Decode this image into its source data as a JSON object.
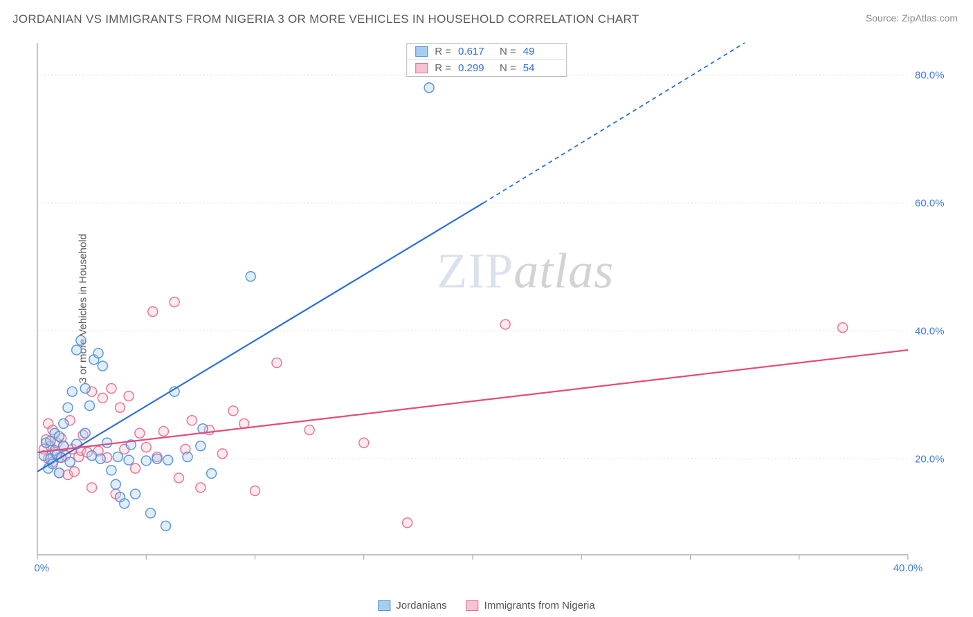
{
  "title": "JORDANIAN VS IMMIGRANTS FROM NIGERIA 3 OR MORE VEHICLES IN HOUSEHOLD CORRELATION CHART",
  "source": "Source: ZipAtlas.com",
  "y_axis_label": "3 or more Vehicles in Household",
  "watermark_a": "ZIP",
  "watermark_b": "atlas",
  "chart": {
    "type": "scatter",
    "background_color": "#ffffff",
    "grid_color": "#d8d8d8",
    "axis_color": "#9e9e9e",
    "tick_label_color": "#3d7ad9",
    "xlim": [
      0,
      40
    ],
    "ylim": [
      5,
      85
    ],
    "x_ticks": [
      0,
      5,
      10,
      15,
      20,
      25,
      30,
      35,
      40
    ],
    "x_tick_labels": {
      "0": "0.0%",
      "40": "40.0%"
    },
    "y_ticks": [
      20,
      40,
      60,
      80
    ],
    "y_tick_labels": {
      "20": "20.0%",
      "40": "40.0%",
      "60": "60.0%",
      "80": "80.0%"
    },
    "marker_radius": 7,
    "marker_fill_opacity": 0.35,
    "marker_stroke_width": 1.5,
    "trend_line_width": 2.2
  },
  "series": [
    {
      "name": "Jordanians",
      "color_fill": "#a9cdf0",
      "color_stroke": "#4b8fd8",
      "trend_color": "#2b6fd6",
      "R": "0.617",
      "N": "49",
      "trend": {
        "x1": 0,
        "y1": 18,
        "x2_solid": 20.5,
        "y2_solid": 60,
        "x2_dash": 32.5,
        "y2_dash": 85
      },
      "points": [
        [
          0.3,
          20.5
        ],
        [
          0.4,
          22.5
        ],
        [
          0.5,
          18.5
        ],
        [
          0.6,
          20.0
        ],
        [
          0.6,
          22.8
        ],
        [
          0.7,
          19.2
        ],
        [
          0.8,
          24.0
        ],
        [
          0.8,
          21.3
        ],
        [
          0.9,
          20.7
        ],
        [
          1.0,
          17.8
        ],
        [
          1.0,
          23.5
        ],
        [
          1.1,
          20.2
        ],
        [
          1.2,
          22.0
        ],
        [
          1.2,
          25.5
        ],
        [
          1.4,
          28.0
        ],
        [
          1.5,
          19.5
        ],
        [
          1.6,
          30.5
        ],
        [
          1.8,
          22.3
        ],
        [
          1.8,
          37.0
        ],
        [
          2.0,
          38.5
        ],
        [
          2.2,
          24.0
        ],
        [
          2.2,
          31.0
        ],
        [
          2.4,
          28.3
        ],
        [
          2.5,
          20.5
        ],
        [
          2.6,
          35.5
        ],
        [
          2.8,
          36.5
        ],
        [
          2.9,
          20.0
        ],
        [
          3.0,
          34.5
        ],
        [
          3.2,
          22.5
        ],
        [
          3.4,
          18.2
        ],
        [
          3.6,
          16.0
        ],
        [
          3.7,
          20.3
        ],
        [
          3.8,
          14.0
        ],
        [
          4.0,
          13.0
        ],
        [
          4.2,
          19.8
        ],
        [
          4.3,
          22.2
        ],
        [
          4.5,
          14.5
        ],
        [
          5.0,
          19.7
        ],
        [
          5.2,
          11.5
        ],
        [
          5.5,
          20.0
        ],
        [
          5.9,
          9.5
        ],
        [
          6.0,
          19.8
        ],
        [
          6.3,
          30.5
        ],
        [
          6.9,
          20.3
        ],
        [
          7.5,
          22.0
        ],
        [
          8.0,
          17.7
        ],
        [
          9.8,
          48.5
        ],
        [
          18.0,
          78.0
        ],
        [
          7.6,
          24.7
        ]
      ]
    },
    {
      "name": "Immigrants from Nigeria",
      "color_fill": "#f6c3d1",
      "color_stroke": "#e56a8d",
      "trend_color": "#e54b7a",
      "R": "0.299",
      "N": "54",
      "trend": {
        "x1": 0,
        "y1": 21,
        "x2_solid": 40,
        "y2_solid": 37,
        "x2_dash": 40,
        "y2_dash": 37
      },
      "points": [
        [
          0.3,
          21.5
        ],
        [
          0.4,
          23.0
        ],
        [
          0.5,
          20.0
        ],
        [
          0.5,
          25.5
        ],
        [
          0.6,
          22.0
        ],
        [
          0.7,
          19.5
        ],
        [
          0.7,
          24.5
        ],
        [
          0.8,
          21.0
        ],
        [
          0.9,
          22.5
        ],
        [
          1.0,
          20.2
        ],
        [
          1.0,
          17.8
        ],
        [
          1.1,
          23.2
        ],
        [
          1.2,
          22.0
        ],
        [
          1.3,
          20.5
        ],
        [
          1.4,
          17.5
        ],
        [
          1.5,
          26.0
        ],
        [
          1.6,
          21.5
        ],
        [
          1.7,
          18.0
        ],
        [
          1.9,
          20.3
        ],
        [
          2.0,
          21.3
        ],
        [
          2.1,
          23.7
        ],
        [
          2.3,
          21.0
        ],
        [
          2.5,
          30.5
        ],
        [
          2.5,
          15.5
        ],
        [
          2.8,
          21.2
        ],
        [
          3.0,
          29.5
        ],
        [
          3.2,
          20.2
        ],
        [
          3.4,
          31.0
        ],
        [
          3.6,
          14.5
        ],
        [
          3.8,
          28.0
        ],
        [
          4.0,
          21.5
        ],
        [
          4.2,
          29.8
        ],
        [
          4.5,
          18.5
        ],
        [
          4.7,
          24.0
        ],
        [
          5.0,
          21.8
        ],
        [
          5.3,
          43.0
        ],
        [
          5.5,
          20.3
        ],
        [
          5.8,
          24.3
        ],
        [
          6.3,
          44.5
        ],
        [
          6.5,
          17.0
        ],
        [
          6.8,
          21.5
        ],
        [
          7.1,
          26.0
        ],
        [
          7.5,
          15.5
        ],
        [
          7.9,
          24.5
        ],
        [
          8.5,
          20.8
        ],
        [
          9.0,
          27.5
        ],
        [
          9.5,
          25.5
        ],
        [
          10.0,
          15.0
        ],
        [
          11.0,
          35.0
        ],
        [
          12.5,
          24.5
        ],
        [
          15.0,
          22.5
        ],
        [
          17.0,
          10.0
        ],
        [
          21.5,
          41.0
        ],
        [
          37.0,
          40.5
        ]
      ]
    }
  ],
  "legend_top": {
    "R_label": "R =",
    "N_label": "N ="
  },
  "legend_bottom": {
    "items": [
      "Jordanians",
      "Immigrants from Nigeria"
    ]
  }
}
